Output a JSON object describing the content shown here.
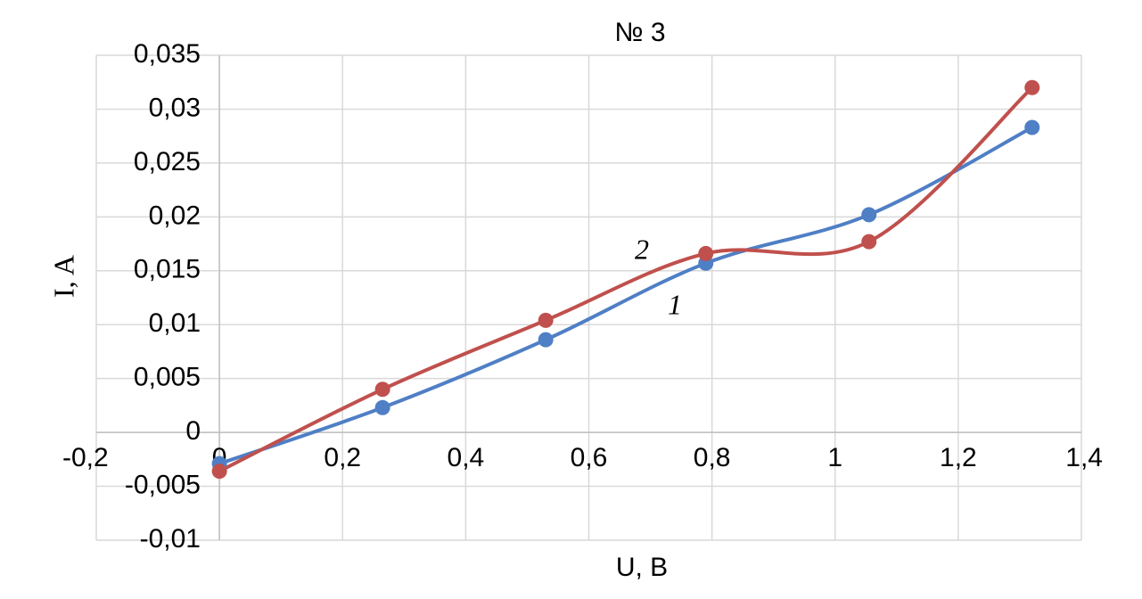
{
  "chart_data": {
    "type": "line",
    "title": "№ 3",
    "x_label": "U, B",
    "y_label": "I, A",
    "x": [
      0,
      0.265,
      0.53,
      0.79,
      1.055,
      1.32
    ],
    "series": [
      {
        "color": "#4f7fc5",
        "values": [
          -0.0029,
          0.0023,
          0.0086,
          0.0157,
          0.0202,
          0.0283
        ]
      },
      {
        "color": "#c0504d",
        "values": [
          -0.0036,
          0.004,
          0.0104,
          0.0166,
          0.0177,
          0.032
        ]
      }
    ],
    "annotations": [
      "2",
      "1"
    ],
    "xlim": [
      -0.2,
      1.4
    ],
    "xticks": [
      {
        "value": -0.2,
        "label": "-0,2"
      },
      0,
      {
        "value": 0.2,
        "label": "0,2"
      },
      {
        "value": 0.4,
        "label": "0,4"
      },
      {
        "value": 0.6,
        "label": "0,6"
      },
      {
        "value": 0.8,
        "label": "0,8"
      },
      1,
      {
        "value": 1.2,
        "label": "1,2"
      },
      {
        "value": 1.4,
        "label": "1,4"
      }
    ],
    "ylim": [
      -0.01,
      0.035
    ],
    "yticks": [
      {
        "value": -0.01,
        "label": "-0,01"
      },
      {
        "value": -0.005,
        "label": "-0,005"
      },
      0,
      {
        "value": 0.005,
        "label": "0,005"
      },
      {
        "value": 0.01,
        "label": "0,01"
      },
      {
        "value": 0.015,
        "label": "0,015"
      },
      {
        "value": 0.02,
        "label": "0,02"
      },
      {
        "value": 0.025,
        "label": "0,025"
      },
      {
        "value": 0.03,
        "label": "0,03"
      },
      {
        "value": 0.035,
        "label": "0,035"
      }
    ],
    "grid": true
  }
}
